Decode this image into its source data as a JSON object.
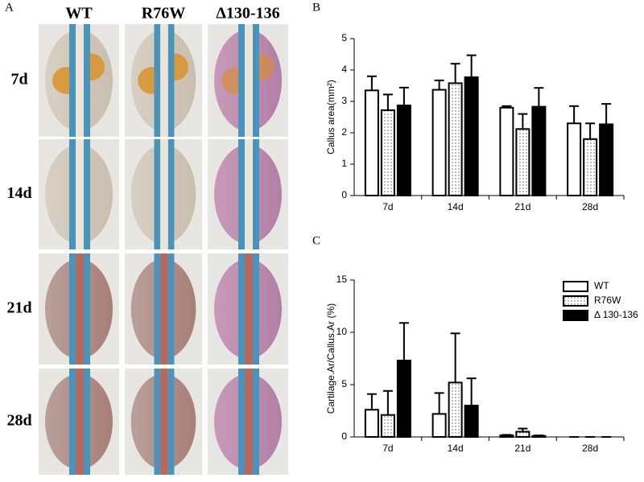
{
  "panel_a": {
    "label": "A",
    "columns": [
      "WT",
      "R76W",
      "Δ130-136"
    ],
    "rows": [
      "7d",
      "14d",
      "21d",
      "28d"
    ]
  },
  "chart_data": [
    {
      "type": "bar",
      "panel_label": "B",
      "y_label": "Callus area(mm²)",
      "categories": [
        "7d",
        "14d",
        "21d",
        "28d"
      ],
      "ylim": [
        0,
        5
      ],
      "yticks": [
        0,
        1,
        2,
        3,
        4,
        5
      ],
      "series": [
        {
          "name": "WT",
          "color": "#ffffff",
          "values": [
            3.35,
            3.37,
            2.8,
            2.3
          ],
          "errors": [
            0.45,
            0.3,
            0.05,
            0.55
          ]
        },
        {
          "name": "R76W",
          "color": "#ffffff",
          "pattern": "dots",
          "values": [
            2.72,
            3.58,
            2.12,
            1.8
          ],
          "errors": [
            0.5,
            0.62,
            0.48,
            0.5
          ]
        },
        {
          "name": "Δ 130-136",
          "color": "#000000",
          "values": [
            2.87,
            3.77,
            2.83,
            2.27
          ],
          "errors": [
            0.57,
            0.7,
            0.6,
            0.65
          ]
        }
      ],
      "legend": false
    },
    {
      "type": "bar",
      "panel_label": "C",
      "y_label": "Cartilage.Ar/Callus.Ar (%)",
      "categories": [
        "7d",
        "14d",
        "21d",
        "28d"
      ],
      "ylim": [
        0,
        15
      ],
      "yticks": [
        0,
        5,
        10,
        15
      ],
      "series": [
        {
          "name": "WT",
          "color": "#ffffff",
          "values": [
            2.6,
            2.2,
            0.15,
            0
          ],
          "errors": [
            1.5,
            2.0,
            0.05,
            0
          ]
        },
        {
          "name": "R76W",
          "color": "#ffffff",
          "pattern": "dots",
          "values": [
            2.1,
            5.2,
            0.5,
            0
          ],
          "errors": [
            2.3,
            4.7,
            0.3,
            0
          ]
        },
        {
          "name": "Δ 130-136",
          "color": "#000000",
          "values": [
            7.3,
            3.0,
            0.1,
            0
          ],
          "errors": [
            3.6,
            2.6,
            0.05,
            0
          ]
        }
      ],
      "legend": true,
      "legend_position": "upper right"
    }
  ]
}
